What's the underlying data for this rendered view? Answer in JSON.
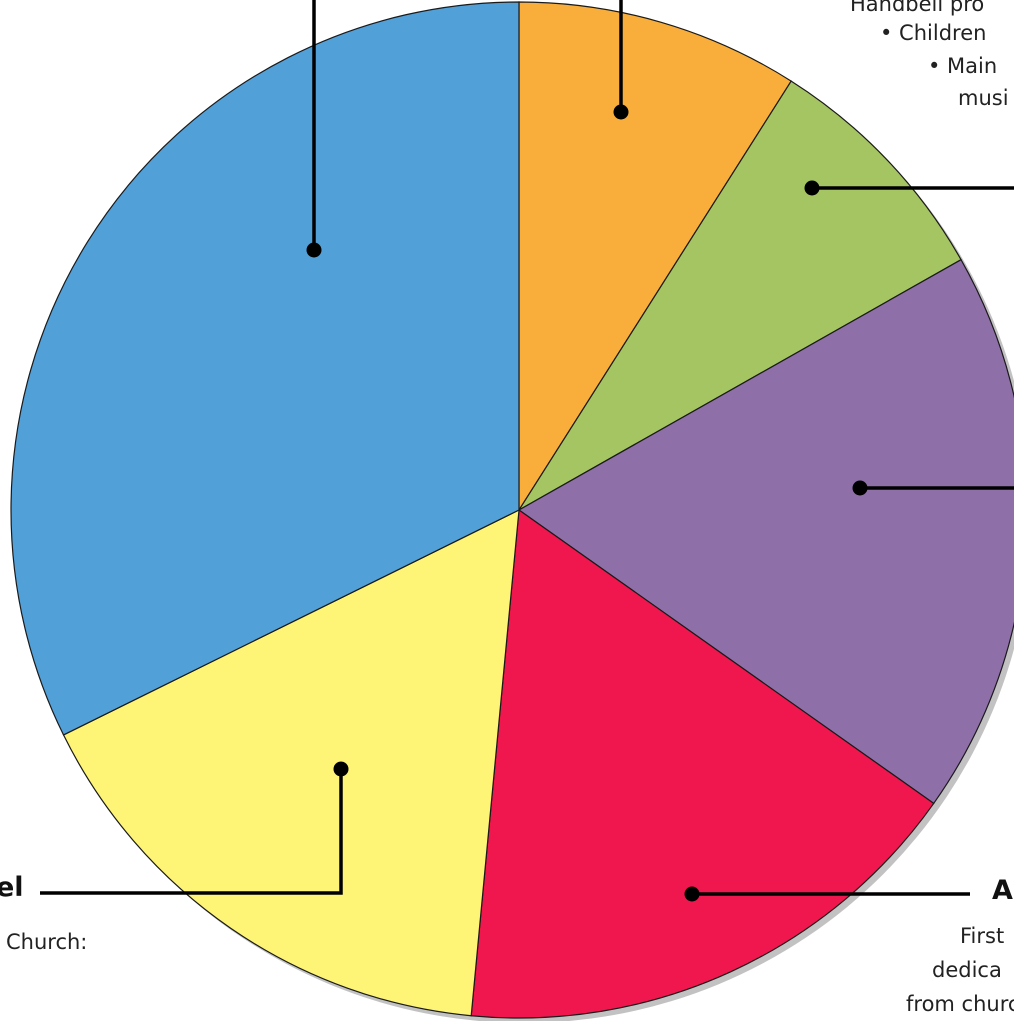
{
  "chart_data": {
    "type": "pie",
    "title": "",
    "legend": "none",
    "slices": [
      {
        "value": 9.0,
        "color": "#F9AE3C"
      },
      {
        "value": 7.8,
        "color": "#A5C462"
      },
      {
        "value": 18.0,
        "color": "#8E6FA7"
      },
      {
        "value": 16.7,
        "color": "#EF174E"
      },
      {
        "value": 16.2,
        "color": "#FEF475"
      },
      {
        "value": 32.3,
        "color": "#52A0D8"
      }
    ]
  },
  "annotations": {
    "top_right_lines": [
      "Handbell pro",
      "• Children",
      "• Main",
      "musi"
    ],
    "purple_label_partial": "",
    "red_label_partial": "A",
    "red_lines": [
      "First",
      "dedica",
      "from churc"
    ],
    "yellow_label_partial": "el",
    "yellow_line": "Church:"
  }
}
